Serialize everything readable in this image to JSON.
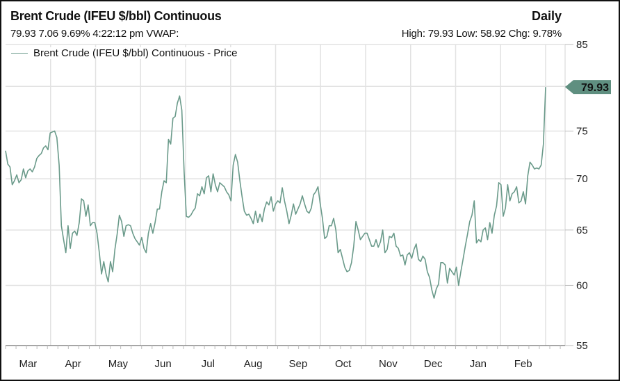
{
  "header": {
    "title": "Brent Crude (IFEU $/bbl) Continuous",
    "period": "Daily",
    "quote": "79.93 7.06 9.69% 4:22:12 pm VWAP:",
    "stats": "High: 79.93 Low: 58.92 Chg: 9.78%"
  },
  "colors": {
    "line": "#6a9a8a",
    "badge": "#5f8f80",
    "grid": "#e2e2e2"
  },
  "chart_data": {
    "type": "line",
    "title": "Brent Crude (IFEU $/bbl) Continuous",
    "xlabel": "",
    "ylabel": "",
    "y_scale": "log",
    "ylim": [
      55,
      85
    ],
    "y_ticks": [
      85,
      80,
      75,
      70,
      65,
      60,
      55
    ],
    "y_tick_labels_shown": [
      "85",
      "75",
      "70",
      "65",
      "60",
      "55"
    ],
    "x_tick_labels": [
      "Mar",
      "Apr",
      "May",
      "Jun",
      "Jul",
      "Aug",
      "Sep",
      "Oct",
      "Nov",
      "Dec",
      "Jan",
      "Feb"
    ],
    "x_range": [
      "Mar",
      "Feb"
    ],
    "grid": true,
    "legend_placement": "top-left",
    "last_value_label": "79.93",
    "series": [
      {
        "name": "Brent Crude (IFEU $/bbl) Continuous - Price",
        "values": [
          72.9,
          71.5,
          71.2,
          69.4,
          69.8,
          70.4,
          69.6,
          69.9,
          71.0,
          70.1,
          70.8,
          71.0,
          70.7,
          71.2,
          72.1,
          72.4,
          72.6,
          73.2,
          73.4,
          73.0,
          74.8,
          74.9,
          75.0,
          74.3,
          71.4,
          65.4,
          64.1,
          62.9,
          65.4,
          63.3,
          64.7,
          64.9,
          64.5,
          65.7,
          68.0,
          67.8,
          66.3,
          67.4,
          65.4,
          65.7,
          65.7,
          64.7,
          62.9,
          61.0,
          62.1,
          61.0,
          60.3,
          62.1,
          61.2,
          63.2,
          64.6,
          66.4,
          65.8,
          64.4,
          65.4,
          65.5,
          65.4,
          64.7,
          64.2,
          63.9,
          63.6,
          64.3,
          63.3,
          62.9,
          64.7,
          65.6,
          64.7,
          65.7,
          67.0,
          67.0,
          68.7,
          69.8,
          69.6,
          74.1,
          73.6,
          76.4,
          76.6,
          78.1,
          78.9,
          77.3,
          70.7,
          66.3,
          66.2,
          66.4,
          66.8,
          67.1,
          68.5,
          68.3,
          69.2,
          68.5,
          70.1,
          70.3,
          68.7,
          70.5,
          69.4,
          68.7,
          69.6,
          69.4,
          69.2,
          68.7,
          68.4,
          67.8,
          71.4,
          72.5,
          71.7,
          69.8,
          68.2,
          66.8,
          66.4,
          66.5,
          66.1,
          65.6,
          66.8,
          65.7,
          66.5,
          65.8,
          67.0,
          67.7,
          67.4,
          68.2,
          66.8,
          67.5,
          67.8,
          67.6,
          69.1,
          67.8,
          66.8,
          65.6,
          66.4,
          67.5,
          66.5,
          67.0,
          67.5,
          68.3,
          67.5,
          66.8,
          66.6,
          67.1,
          68.4,
          68.7,
          69.2,
          67.5,
          66.1,
          64.2,
          64.4,
          65.4,
          65.4,
          66.1,
          65.0,
          62.9,
          63.2,
          62.4,
          61.6,
          61.2,
          61.3,
          62.0,
          63.5,
          65.8,
          65.0,
          64.1,
          64.4,
          64.7,
          64.7,
          64.1,
          63.5,
          63.5,
          64.1,
          63.4,
          63.9,
          65.0,
          62.9,
          63.2,
          64.4,
          64.3,
          64.7,
          63.5,
          63.3,
          62.6,
          62.7,
          61.8,
          62.7,
          62.9,
          62.4,
          63.2,
          63.7,
          62.3,
          62.1,
          62.6,
          62.3,
          61.2,
          60.7,
          59.6,
          58.9,
          59.7,
          60.1,
          62.0,
          62.0,
          61.8,
          60.2,
          61.5,
          61.2,
          60.9,
          61.6,
          60.0,
          61.2,
          62.3,
          63.5,
          64.6,
          65.8,
          66.4,
          67.8,
          63.8,
          64.1,
          63.9,
          65.0,
          65.2,
          64.1,
          65.7,
          64.7,
          66.4,
          67.3,
          69.6,
          69.4,
          66.3,
          67.1,
          69.4,
          67.8,
          68.5,
          68.7,
          69.2,
          67.6,
          67.8,
          68.7,
          67.5,
          70.3,
          71.7,
          71.4,
          71.0,
          71.1,
          71.0,
          71.4,
          73.6,
          79.93
        ]
      }
    ]
  }
}
